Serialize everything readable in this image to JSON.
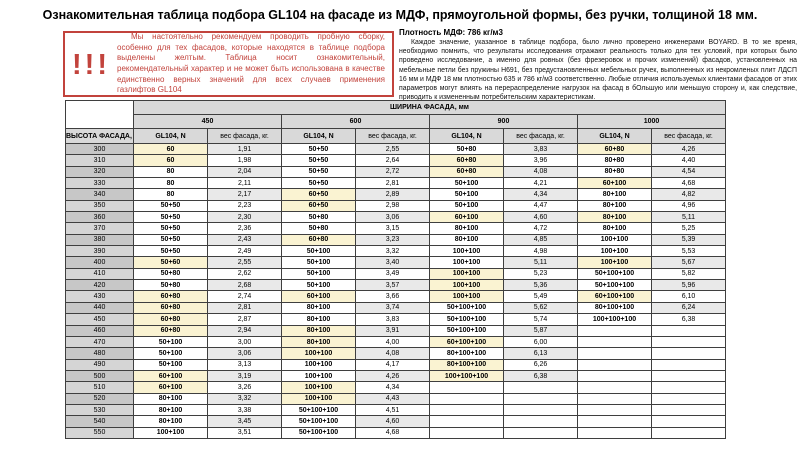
{
  "title": "Ознакомительная таблица подбора GL104 на фасаде из МДФ, прямоугольной формы, без ручки, толщиной 18 мм.",
  "warning": {
    "marks": "!!!",
    "text": "Мы настоятельно рекомендуем проводить пробную сборку, особенно для тех фасадов, которые находятся в таблице подбора выделены желтым. Таблица носит ознакомительный, рекомендательный характер и не может быть использована в качестве единственно верных значений для всех случаев применения газлифтов GL104"
  },
  "info": {
    "density": "Плотность МДФ: 786 кг/м3",
    "body": "Каждое значение, указанное в таблице подбора, было лично проверено инженерами BOYARD. В то же время, необходимо помнить, что результаты исследования отражают реальность только для тех условий, при которых было проведено исследование, а именно для ровных (без фрезеровок и прочих изменений) фасадов, установленных на мебельные петли без пружины H691, без предустановленных мебельных ручек, выполненных из некромленых плит ЛДСП 16 мм и МДФ 18 мм плотностью 635 и 786 кг/м3 соответственно. Любые отличия используемых клиентами фасадов от этих параметров могут влиять на перераспределение нагрузок на фасад в бОльшую или меньшую сторону и, как следствие, приводить к измененным потребительским характеристикам."
  },
  "colors": {
    "highlight_yellow": "#faf3d2",
    "accent_red": "#c2433c"
  },
  "table": {
    "width_header": "ШИРИНА ФАСАДА, мм",
    "height_header": "ВЫСОТА ФАСАДА, мм",
    "gl_header": "GL104, N",
    "weight_header": "вес фасада, кг.",
    "widths": [
      "450",
      "600",
      "900",
      "1000"
    ],
    "rows": [
      {
        "h": "300",
        "c": [
          [
            "60",
            1,
            "1,91"
          ],
          [
            "50+50",
            0,
            "2,55"
          ],
          [
            "50+80",
            0,
            "3,83"
          ],
          [
            "60+80",
            1,
            "4,26"
          ]
        ]
      },
      {
        "h": "310",
        "c": [
          [
            "60",
            1,
            "1,98"
          ],
          [
            "50+50",
            0,
            "2,64"
          ],
          [
            "60+80",
            1,
            "3,96"
          ],
          [
            "80+80",
            0,
            "4,40"
          ]
        ]
      },
      {
        "h": "320",
        "c": [
          [
            "80",
            0,
            "2,04"
          ],
          [
            "50+50",
            0,
            "2,72"
          ],
          [
            "60+80",
            1,
            "4,08"
          ],
          [
            "80+80",
            0,
            "4,54"
          ]
        ]
      },
      {
        "h": "330",
        "c": [
          [
            "80",
            0,
            "2,11"
          ],
          [
            "50+50",
            0,
            "2,81"
          ],
          [
            "50+100",
            0,
            "4,21"
          ],
          [
            "60+100",
            1,
            "4,68"
          ]
        ]
      },
      {
        "h": "340",
        "c": [
          [
            "80",
            0,
            "2,17"
          ],
          [
            "60+50",
            1,
            "2,89"
          ],
          [
            "50+100",
            0,
            "4,34"
          ],
          [
            "80+100",
            0,
            "4,82"
          ]
        ]
      },
      {
        "h": "350",
        "c": [
          [
            "50+50",
            0,
            "2,23"
          ],
          [
            "60+50",
            1,
            "2,98"
          ],
          [
            "50+100",
            0,
            "4,47"
          ],
          [
            "80+100",
            0,
            "4,96"
          ]
        ]
      },
      {
        "h": "360",
        "c": [
          [
            "50+50",
            0,
            "2,30"
          ],
          [
            "50+80",
            0,
            "3,06"
          ],
          [
            "60+100",
            1,
            "4,60"
          ],
          [
            "80+100",
            1,
            "5,11"
          ]
        ]
      },
      {
        "h": "370",
        "c": [
          [
            "50+50",
            0,
            "2,36"
          ],
          [
            "50+80",
            0,
            "3,15"
          ],
          [
            "80+100",
            0,
            "4,72"
          ],
          [
            "80+100",
            0,
            "5,25"
          ]
        ]
      },
      {
        "h": "380",
        "c": [
          [
            "50+50",
            0,
            "2,43"
          ],
          [
            "60+80",
            1,
            "3,23"
          ],
          [
            "80+100",
            0,
            "4,85"
          ],
          [
            "100+100",
            0,
            "5,39"
          ]
        ]
      },
      {
        "h": "390",
        "c": [
          [
            "50+50",
            0,
            "2,49"
          ],
          [
            "50+100",
            0,
            "3,32"
          ],
          [
            "100+100",
            0,
            "4,98"
          ],
          [
            "100+100",
            0,
            "5,53"
          ]
        ]
      },
      {
        "h": "400",
        "c": [
          [
            "50+60",
            1,
            "2,55"
          ],
          [
            "50+100",
            0,
            "3,40"
          ],
          [
            "100+100",
            0,
            "5,11"
          ],
          [
            "100+100",
            1,
            "5,67"
          ]
        ]
      },
      {
        "h": "410",
        "c": [
          [
            "50+80",
            0,
            "2,62"
          ],
          [
            "50+100",
            0,
            "3,49"
          ],
          [
            "100+100",
            1,
            "5,23"
          ],
          [
            "50+100+100",
            0,
            "5,82"
          ]
        ]
      },
      {
        "h": "420",
        "c": [
          [
            "50+80",
            0,
            "2,68"
          ],
          [
            "50+100",
            0,
            "3,57"
          ],
          [
            "100+100",
            1,
            "5,36"
          ],
          [
            "50+100+100",
            0,
            "5,96"
          ]
        ]
      },
      {
        "h": "430",
        "c": [
          [
            "60+80",
            1,
            "2,74"
          ],
          [
            "60+100",
            1,
            "3,66"
          ],
          [
            "100+100",
            1,
            "5,49"
          ],
          [
            "60+100+100",
            1,
            "6,10"
          ]
        ]
      },
      {
        "h": "440",
        "c": [
          [
            "60+80",
            1,
            "2,81"
          ],
          [
            "80+100",
            0,
            "3,74"
          ],
          [
            "50+100+100",
            0,
            "5,62"
          ],
          [
            "80+100+100",
            0,
            "6,24"
          ]
        ]
      },
      {
        "h": "450",
        "c": [
          [
            "60+80",
            1,
            "2,87"
          ],
          [
            "80+100",
            0,
            "3,83"
          ],
          [
            "50+100+100",
            0,
            "5,74"
          ],
          [
            "100+100+100",
            0,
            "6,38"
          ]
        ]
      },
      {
        "h": "460",
        "c": [
          [
            "60+80",
            1,
            "2,94"
          ],
          [
            "80+100",
            1,
            "3,91"
          ],
          [
            "50+100+100",
            0,
            "5,87"
          ]
        ]
      },
      {
        "h": "470",
        "c": [
          [
            "50+100",
            0,
            "3,00"
          ],
          [
            "80+100",
            1,
            "4,00"
          ],
          [
            "60+100+100",
            1,
            "6,00"
          ]
        ]
      },
      {
        "h": "480",
        "c": [
          [
            "50+100",
            0,
            "3,06"
          ],
          [
            "100+100",
            1,
            "4,08"
          ],
          [
            "80+100+100",
            0,
            "6,13"
          ]
        ]
      },
      {
        "h": "490",
        "c": [
          [
            "50+100",
            0,
            "3,13"
          ],
          [
            "100+100",
            0,
            "4,17"
          ],
          [
            "80+100+100",
            1,
            "6,26"
          ]
        ]
      },
      {
        "h": "500",
        "c": [
          [
            "60+100",
            1,
            "3,19"
          ],
          [
            "100+100",
            0,
            "4,26"
          ],
          [
            "100+100+100",
            1,
            "6,38"
          ]
        ]
      },
      {
        "h": "510",
        "c": [
          [
            "60+100",
            1,
            "3,26"
          ],
          [
            "100+100",
            1,
            "4,34"
          ]
        ]
      },
      {
        "h": "520",
        "c": [
          [
            "80+100",
            0,
            "3,32"
          ],
          [
            "100+100",
            1,
            "4,43"
          ]
        ]
      },
      {
        "h": "530",
        "c": [
          [
            "80+100",
            0,
            "3,38"
          ],
          [
            "50+100+100",
            0,
            "4,51"
          ]
        ]
      },
      {
        "h": "540",
        "c": [
          [
            "80+100",
            0,
            "3,45"
          ],
          [
            "50+100+100",
            0,
            "4,60"
          ]
        ]
      },
      {
        "h": "550",
        "c": [
          [
            "100+100",
            0,
            "3,51"
          ],
          [
            "50+100+100",
            0,
            "4,68"
          ]
        ]
      }
    ]
  }
}
